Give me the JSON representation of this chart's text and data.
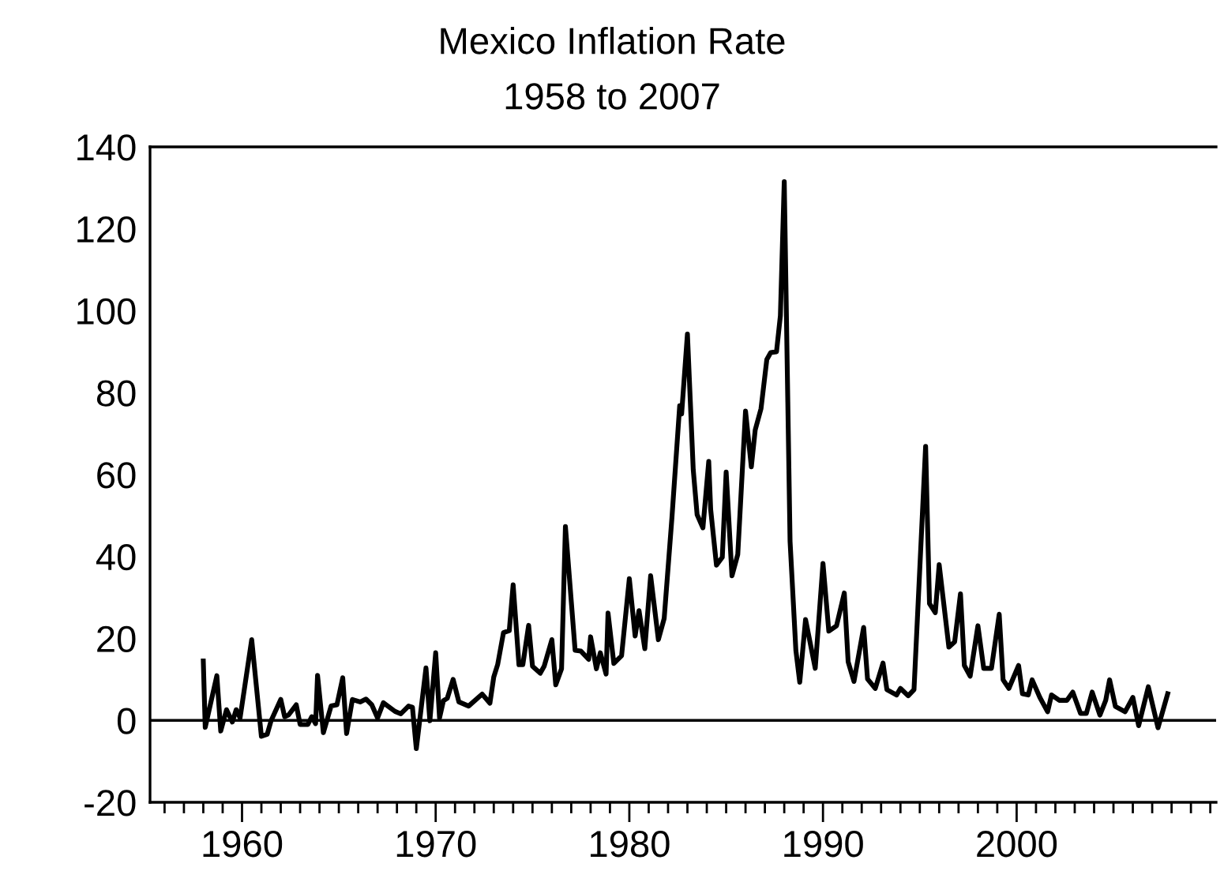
{
  "chart_data": {
    "type": "line",
    "title": "Mexico Inflation Rate",
    "subtitle": "1958 to 2007",
    "series": [
      {
        "color": "#000000",
        "x": [
          1958.0,
          1958.1,
          1958.7,
          1958.9,
          1959.2,
          1959.5,
          1959.7,
          1959.9,
          1960.5,
          1961.0,
          1961.3,
          1961.5,
          1962.0,
          1962.2,
          1962.4,
          1962.8,
          1963.0,
          1963.4,
          1963.6,
          1963.8,
          1963.9,
          1964.2,
          1964.6,
          1964.9,
          1965.2,
          1965.4,
          1965.7,
          1966.1,
          1966.4,
          1966.7,
          1967.0,
          1967.3,
          1967.9,
          1968.2,
          1968.6,
          1968.8,
          1969.0,
          1969.5,
          1969.7,
          1970.0,
          1970.2,
          1970.4,
          1970.6,
          1970.9,
          1971.2,
          1971.7,
          1972.4,
          1972.8,
          1973.0,
          1973.2,
          1973.5,
          1973.8,
          1974.0,
          1974.3,
          1974.5,
          1974.8,
          1975.0,
          1975.4,
          1975.6,
          1976.0,
          1976.2,
          1976.5,
          1976.7,
          1977.2,
          1977.5,
          1977.9,
          1978.0,
          1978.3,
          1978.5,
          1978.8,
          1978.9,
          1979.2,
          1979.6,
          1980.0,
          1980.3,
          1980.5,
          1980.8,
          1981.1,
          1981.5,
          1981.8,
          1982.2,
          1982.6,
          1982.7,
          1983.0,
          1983.3,
          1983.5,
          1983.8,
          1984.1,
          1984.2,
          1984.5,
          1984.8,
          1985.0,
          1985.3,
          1985.6,
          1986.0,
          1986.3,
          1986.5,
          1986.8,
          1987.1,
          1987.3,
          1987.6,
          1987.8,
          1988.0,
          1988.3,
          1988.6,
          1988.8,
          1989.1,
          1989.6,
          1990.0,
          1990.3,
          1990.7,
          1991.1,
          1991.3,
          1991.6,
          1992.1,
          1992.3,
          1992.7,
          1993.1,
          1993.3,
          1993.8,
          1994.0,
          1994.4,
          1994.7,
          1995.3,
          1995.5,
          1995.8,
          1996.0,
          1996.5,
          1996.8,
          1997.1,
          1997.3,
          1997.6,
          1998.0,
          1998.3,
          1998.7,
          1999.1,
          1999.3,
          1999.6,
          2000.1,
          2000.3,
          2000.6,
          2000.8,
          2001.2,
          2001.6,
          2001.8,
          2002.2,
          2002.6,
          2002.9,
          2003.3,
          2003.6,
          2003.9,
          2004.3,
          2004.6,
          2004.8,
          2005.1,
          2005.6,
          2006.0,
          2006.3,
          2006.8,
          2007.3,
          2007.8
        ],
        "values": [
          14.5,
          -1.7,
          10.9,
          -2.6,
          2.6,
          -0.4,
          2.6,
          0.6,
          19.7,
          -3.9,
          -3.4,
          -0.1,
          5.1,
          0.9,
          1.3,
          3.8,
          -1.0,
          -1.0,
          0.9,
          -0.8,
          11.0,
          -3.0,
          3.5,
          3.8,
          10.4,
          -3.2,
          5.1,
          4.5,
          5.2,
          3.8,
          0.6,
          4.3,
          2.2,
          1.6,
          3.5,
          3.2,
          -6.9,
          12.8,
          -0.1,
          16.5,
          0.6,
          4.8,
          5.4,
          10.0,
          4.5,
          3.5,
          6.4,
          4.2,
          10.6,
          13.6,
          21.4,
          21.9,
          33.1,
          13.6,
          13.6,
          23.2,
          13.2,
          11.5,
          13.2,
          19.7,
          8.7,
          12.6,
          47.3,
          17.1,
          16.9,
          14.9,
          20.4,
          12.6,
          16.5,
          11.3,
          26.2,
          13.9,
          15.8,
          34.6,
          20.6,
          26.8,
          17.5,
          35.3,
          19.7,
          24.9,
          49.5,
          76.8,
          74.8,
          94.3,
          61.2,
          50.2,
          47.0,
          63.2,
          51.5,
          37.9,
          39.8,
          60.6,
          35.3,
          40.5,
          75.5,
          61.9,
          70.9,
          76.1,
          88.1,
          89.8,
          90.0,
          98.8,
          131.5,
          43.7,
          17.1,
          9.3,
          24.6,
          12.7,
          38.3,
          21.8,
          23.1,
          31.1,
          14.3,
          9.5,
          22.7,
          10.1,
          7.8,
          14.0,
          7.5,
          6.2,
          7.8,
          6.0,
          7.5,
          66.9,
          28.5,
          26.3,
          38.0,
          17.9,
          19.2,
          30.9,
          13.4,
          10.8,
          23.1,
          12.7,
          12.7,
          25.9,
          9.9,
          7.8,
          13.4,
          6.5,
          6.2,
          9.9,
          5.6,
          2.1,
          6.2,
          4.9,
          4.9,
          6.9,
          1.7,
          1.7,
          6.9,
          1.3,
          4.9,
          9.9,
          3.4,
          2.1,
          5.6,
          -1.3,
          8.2,
          -1.8,
          6.5
        ]
      }
    ],
    "xlim": [
      1955.25,
      2010.3
    ],
    "xticks": [
      {
        "value": 1956,
        "label": null
      },
      {
        "value": 1957,
        "label": null
      },
      {
        "value": 1958,
        "label": null
      },
      {
        "value": 1959,
        "label": null
      },
      1960,
      {
        "value": 1961,
        "label": null
      },
      {
        "value": 1962,
        "label": null
      },
      {
        "value": 1963,
        "label": null
      },
      {
        "value": 1964,
        "label": null
      },
      {
        "value": 1965,
        "label": null
      },
      {
        "value": 1966,
        "label": null
      },
      {
        "value": 1967,
        "label": null
      },
      {
        "value": 1968,
        "label": null
      },
      {
        "value": 1969,
        "label": null
      },
      1970,
      {
        "value": 1971,
        "label": null
      },
      {
        "value": 1972,
        "label": null
      },
      {
        "value": 1973,
        "label": null
      },
      {
        "value": 1974,
        "label": null
      },
      {
        "value": 1975,
        "label": null
      },
      {
        "value": 1976,
        "label": null
      },
      {
        "value": 1977,
        "label": null
      },
      {
        "value": 1978,
        "label": null
      },
      {
        "value": 1979,
        "label": null
      },
      1980,
      {
        "value": 1981,
        "label": null
      },
      {
        "value": 1982,
        "label": null
      },
      {
        "value": 1983,
        "label": null
      },
      {
        "value": 1984,
        "label": null
      },
      {
        "value": 1985,
        "label": null
      },
      {
        "value": 1986,
        "label": null
      },
      {
        "value": 1987,
        "label": null
      },
      {
        "value": 1988,
        "label": null
      },
      {
        "value": 1989,
        "label": null
      },
      1990,
      {
        "value": 1991,
        "label": null
      },
      {
        "value": 1992,
        "label": null
      },
      {
        "value": 1993,
        "label": null
      },
      {
        "value": 1994,
        "label": null
      },
      {
        "value": 1995,
        "label": null
      },
      {
        "value": 1996,
        "label": null
      },
      {
        "value": 1997,
        "label": null
      },
      {
        "value": 1998,
        "label": null
      },
      {
        "value": 1999,
        "label": null
      },
      2000,
      {
        "value": 2001,
        "label": null
      },
      {
        "value": 2002,
        "label": null
      },
      {
        "value": 2003,
        "label": null
      },
      {
        "value": 2004,
        "label": null
      },
      {
        "value": 2005,
        "label": null
      },
      {
        "value": 2006,
        "label": null
      },
      {
        "value": 2007,
        "label": null
      },
      {
        "value": 2008,
        "label": null
      },
      {
        "value": 2009,
        "label": null
      },
      {
        "value": 2010,
        "label": null
      }
    ],
    "ylim": [
      -20,
      140
    ],
    "yticks": [
      -20,
      0,
      20,
      40,
      60,
      80,
      100,
      120,
      140
    ],
    "ref_lines": [
      {
        "axis": "y",
        "value": 0,
        "color": "#000000"
      }
    ],
    "grid": false,
    "marker": "none",
    "line_style": "solid"
  }
}
